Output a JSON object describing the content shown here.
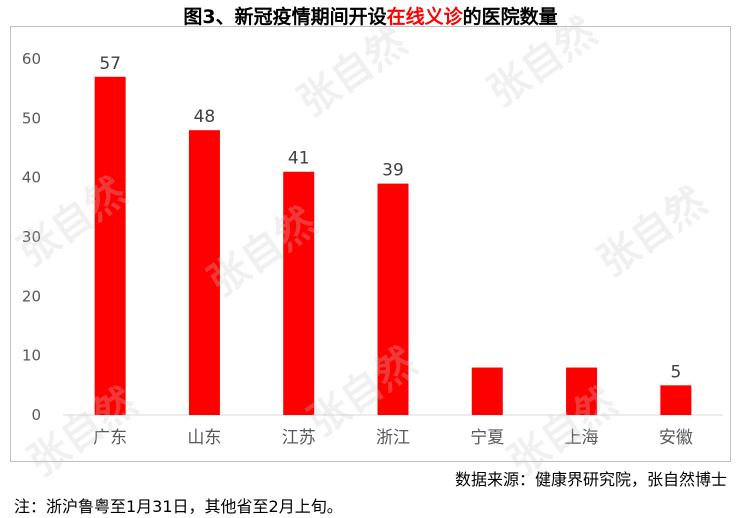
{
  "title": {
    "prefix": "图3、新冠疫情期间开设",
    "highlight": "在线义诊",
    "suffix": "的医院数量",
    "highlight_color": "#ff0000"
  },
  "chart_data": {
    "type": "bar",
    "categories": [
      "广东",
      "山东",
      "江苏",
      "浙江",
      "宁夏",
      "上海",
      "安徽"
    ],
    "values": [
      57,
      48,
      41,
      39,
      8,
      8,
      5
    ],
    "data_labels": [
      "57",
      "48",
      "41",
      "39",
      "",
      "",
      "5"
    ],
    "ylim": [
      0,
      60
    ],
    "yticks": [
      0,
      10,
      20,
      30,
      40,
      50,
      60
    ],
    "bar_color": "#ff0000",
    "grid": false,
    "legend": "none"
  },
  "source": "数据来源：健康界研究院，张自然博士",
  "footnote": "注：浙沪鲁粤至1月31日，其他省至2月上旬。",
  "watermark": "张自然"
}
